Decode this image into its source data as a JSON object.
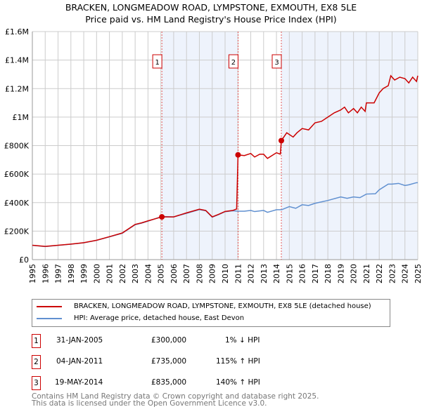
{
  "chart_data": {
    "type": "line",
    "title": "BRACKEN, LONGMEADOW ROAD, LYMPSTONE, EXMOUTH, EX8 5LE",
    "subtitle": "Price paid vs. HM Land Registry's House Price Index (HPI)",
    "xlim": [
      1995,
      2025
    ],
    "ylim": [
      0,
      1600000
    ],
    "y_ticks": [
      {
        "v": 0,
        "label": "£0"
      },
      {
        "v": 200000,
        "label": "£200K"
      },
      {
        "v": 400000,
        "label": "£400K"
      },
      {
        "v": 600000,
        "label": "£600K"
      },
      {
        "v": 800000,
        "label": "£800K"
      },
      {
        "v": 1000000,
        "label": "£1M"
      },
      {
        "v": 1200000,
        "label": "£1.2M"
      },
      {
        "v": 1400000,
        "label": "£1.4M"
      },
      {
        "v": 1600000,
        "label": "£1.6M"
      }
    ],
    "x_ticks": [
      "1995",
      "1996",
      "1997",
      "1998",
      "1999",
      "2000",
      "2001",
      "2002",
      "2003",
      "2004",
      "2005",
      "2006",
      "2007",
      "2008",
      "2009",
      "2010",
      "2011",
      "2012",
      "2013",
      "2014",
      "2015",
      "2016",
      "2017",
      "2018",
      "2019",
      "2020",
      "2021",
      "2022",
      "2023",
      "2024",
      "2025"
    ],
    "grid": true,
    "series": [
      {
        "name": "BRACKEN, LONGMEADOW ROAD, LYMPSTONE, EXMOUTH, EX8 5LE (detached house)",
        "color": "#cc0000",
        "x": [
          1995,
          1996,
          1997,
          1998,
          1999,
          2000,
          2001,
          2002,
          2003,
          2003.5,
          2004,
          2005.08,
          2006,
          2007,
          2008,
          2008.5,
          2009,
          2009.5,
          2010,
          2010.6,
          2010.9,
          2011.01,
          2011.5,
          2012,
          2012.3,
          2012.7,
          2013,
          2013.3,
          2014,
          2014.3,
          2014.38,
          2014.8,
          2015.3,
          2015.6,
          2016,
          2016.5,
          2017,
          2017.5,
          2018,
          2018.5,
          2019,
          2019.3,
          2019.6,
          2020,
          2020.3,
          2020.6,
          2020.9,
          2021,
          2021.6,
          2022,
          2022.3,
          2022.7,
          2022.9,
          2023.2,
          2023.6,
          2024,
          2024.3,
          2024.6,
          2024.9,
          2025
        ],
        "y": [
          101000,
          93000,
          101000,
          109000,
          119000,
          136000,
          161000,
          187000,
          247000,
          258000,
          272000,
          300000,
          300000,
          328000,
          354000,
          345000,
          300000,
          318000,
          338000,
          345000,
          355000,
          735000,
          730000,
          745000,
          720000,
          740000,
          740000,
          710000,
          750000,
          740000,
          835000,
          890000,
          860000,
          890000,
          920000,
          910000,
          960000,
          970000,
          1000000,
          1030000,
          1050000,
          1070000,
          1030000,
          1060000,
          1030000,
          1070000,
          1040000,
          1100000,
          1100000,
          1170000,
          1200000,
          1220000,
          1290000,
          1260000,
          1280000,
          1270000,
          1240000,
          1280000,
          1250000,
          1290000
        ]
      },
      {
        "name": "HPI: Average price, detached house, East Devon",
        "color": "#6090d0",
        "x": [
          1995,
          1996,
          1997,
          1998,
          1999,
          2000,
          2001,
          2002,
          2003,
          2003.5,
          2004,
          2005.08,
          2006,
          2007,
          2008,
          2008.5,
          2009,
          2009.5,
          2010,
          2010.6,
          2011,
          2011.5,
          2012,
          2012.3,
          2013,
          2013.3,
          2014,
          2014.4,
          2015,
          2015.5,
          2016,
          2016.5,
          2017,
          2018,
          2019,
          2019.5,
          2020,
          2020.5,
          2021,
          2021.7,
          2022,
          2022.7,
          2023,
          2023.5,
          2024,
          2024.3,
          2024.9,
          2025
        ],
        "y": [
          100000,
          92000,
          100000,
          108000,
          118000,
          135000,
          160000,
          185000,
          245000,
          256000,
          270000,
          303000,
          300000,
          325000,
          351000,
          343000,
          298000,
          316000,
          336000,
          343000,
          340000,
          340000,
          345000,
          337000,
          345000,
          332000,
          350000,
          350000,
          372000,
          360000,
          385000,
          380000,
          395000,
          415000,
          440000,
          430000,
          440000,
          435000,
          460000,
          462000,
          490000,
          530000,
          530000,
          535000,
          520000,
          525000,
          540000,
          540000
        ]
      }
    ],
    "sales": [
      {
        "n": "1",
        "x": 2005.08,
        "y": 300000,
        "date": "31-JAN-2005",
        "price": "£300,000",
        "hpi": "1% ↓ HPI"
      },
      {
        "n": "2",
        "x": 2011.01,
        "y": 735000,
        "date": "04-JAN-2011",
        "price": "£735,000",
        "hpi": "115% ↑ HPI"
      },
      {
        "n": "3",
        "x": 2014.38,
        "y": 835000,
        "date": "19-MAY-2014",
        "price": "£835,000",
        "hpi": "140% ↑ HPI"
      }
    ],
    "shade_color": "#eef3fc"
  },
  "footer": {
    "line1": "Contains HM Land Registry data © Crown copyright and database right 2025.",
    "line2": "This data is licensed under the Open Government Licence v3.0."
  }
}
